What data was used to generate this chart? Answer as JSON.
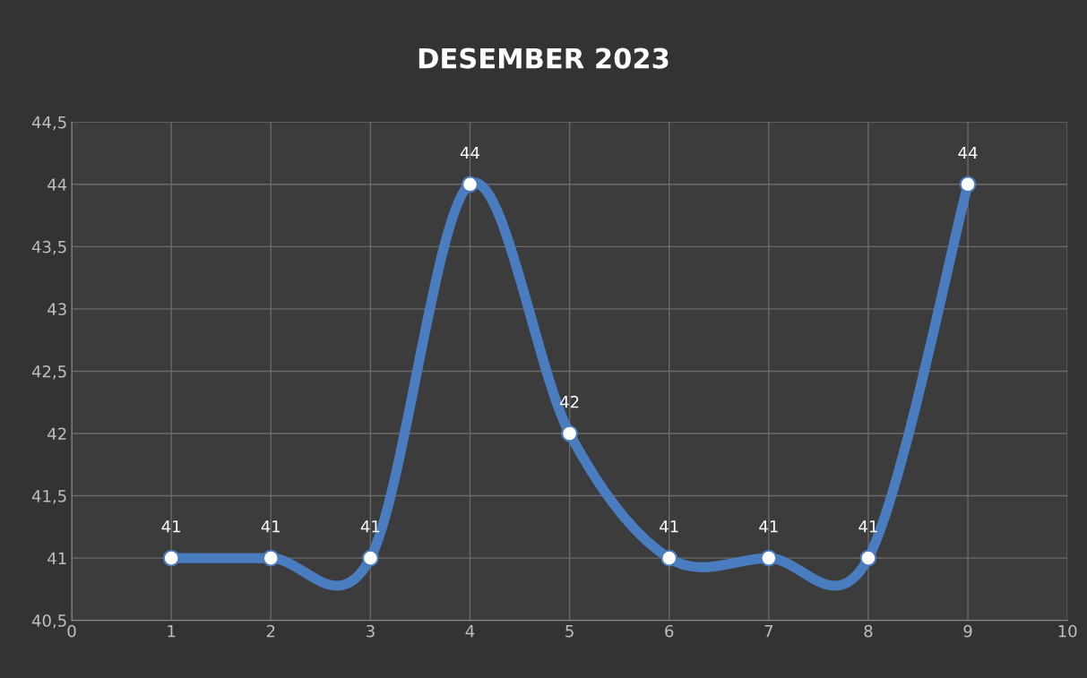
{
  "chart_data": {
    "type": "line",
    "title": "DESEMBER 2023",
    "x": [
      1,
      2,
      3,
      4,
      5,
      6,
      7,
      8,
      9
    ],
    "series": [
      {
        "color": "#4a7cc0",
        "values": [
          41,
          41,
          41,
          44,
          42,
          41,
          41,
          41,
          44
        ]
      }
    ],
    "xlim": [
      0,
      10
    ],
    "xticks": [
      0,
      1,
      2,
      3,
      4,
      5,
      6,
      7,
      8,
      9,
      10
    ],
    "ylim": [
      40.5,
      44.5
    ],
    "yticks": [
      {
        "value": 40.5,
        "label": "40,5"
      },
      41,
      {
        "value": 41.5,
        "label": "41,5"
      },
      42,
      {
        "value": 42.5,
        "label": "42,5"
      },
      43,
      {
        "value": 43.5,
        "label": "43,5"
      },
      44,
      {
        "value": 44.5,
        "label": "44,5"
      }
    ],
    "grid": true,
    "marker": "circle",
    "line_style": "solid",
    "data_labels": true,
    "legend": false
  }
}
